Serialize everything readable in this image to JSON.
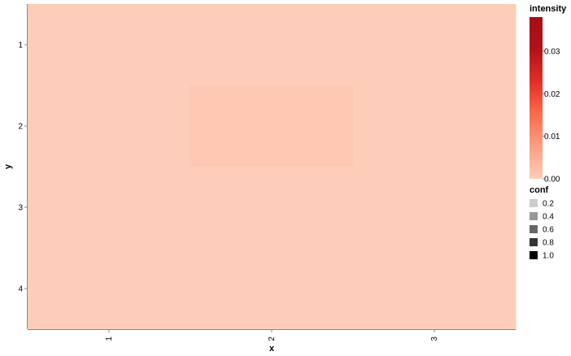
{
  "chart_data": {
    "type": "heatmap",
    "title": "",
    "xlabel": "x",
    "ylabel": "y",
    "x_categories": [
      "1",
      "2",
      "3"
    ],
    "y_categories": [
      "1",
      "2",
      "3",
      "4"
    ],
    "cells": [
      {
        "x": "1",
        "y": "1",
        "intensity": 0.0,
        "conf": 1.0
      },
      {
        "x": "2",
        "y": "1",
        "intensity": 0.0,
        "conf": 1.0
      },
      {
        "x": "3",
        "y": "1",
        "intensity": 0.0,
        "conf": 1.0
      },
      {
        "x": "1",
        "y": "2",
        "intensity": 0.0,
        "conf": 1.0
      },
      {
        "x": "2",
        "y": "2",
        "intensity": 0.001,
        "conf": 1.0
      },
      {
        "x": "3",
        "y": "2",
        "intensity": 0.0,
        "conf": 1.0
      },
      {
        "x": "1",
        "y": "3",
        "intensity": 0.0,
        "conf": 1.0
      },
      {
        "x": "2",
        "y": "3",
        "intensity": 0.0,
        "conf": 1.0
      },
      {
        "x": "3",
        "y": "3",
        "intensity": 0.0,
        "conf": 1.0
      },
      {
        "x": "1",
        "y": "4",
        "intensity": 0.0,
        "conf": 1.0
      },
      {
        "x": "2",
        "y": "4",
        "intensity": 0.0,
        "conf": 1.0
      },
      {
        "x": "3",
        "y": "4",
        "intensity": 0.0,
        "conf": 1.0
      }
    ],
    "color_legend": {
      "title": "intensity",
      "domain": [
        0,
        0.038
      ],
      "ticks": [
        {
          "value": 0.0,
          "label": "0.00"
        },
        {
          "value": 0.01,
          "label": "0.01"
        },
        {
          "value": 0.02,
          "label": "0.02"
        },
        {
          "value": 0.03,
          "label": "0.03"
        }
      ],
      "colors": [
        "#fdcdb9",
        "#fc9f81",
        "#fb6b4b",
        "#e32f27",
        "#b11218",
        "#a50f15"
      ]
    },
    "opacity_legend": {
      "title": "conf",
      "entries": [
        {
          "value": 0.2,
          "label": "0.2"
        },
        {
          "value": 0.4,
          "label": "0.4"
        },
        {
          "value": 0.6,
          "label": "0.6"
        },
        {
          "value": 0.8,
          "label": "0.8"
        },
        {
          "value": 1.0,
          "label": "1.0"
        }
      ]
    },
    "grid": false,
    "legend_position": "right"
  }
}
